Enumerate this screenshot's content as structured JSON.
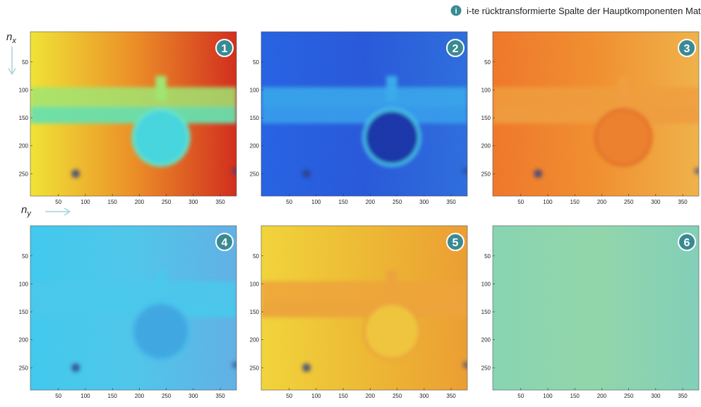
{
  "legend": {
    "icon": "i",
    "text": "i-te rücktransformierte Spalte der Hauptkomponenten Matrix"
  },
  "axis_labels": {
    "x": {
      "base": "n",
      "sub": "y"
    },
    "y": {
      "base": "n",
      "sub": "x"
    }
  },
  "axes": {
    "xlim": [
      -2,
      380
    ],
    "ylim": [
      -4,
      290
    ],
    "xticks": [
      50,
      100,
      150,
      200,
      250,
      300,
      350
    ],
    "yticks": [
      50,
      100,
      150,
      200,
      250
    ]
  },
  "panels": [
    {
      "number": "1"
    },
    {
      "number": "2"
    },
    {
      "number": "3"
    },
    {
      "number": "4"
    },
    {
      "number": "5"
    },
    {
      "number": "6"
    }
  ]
}
